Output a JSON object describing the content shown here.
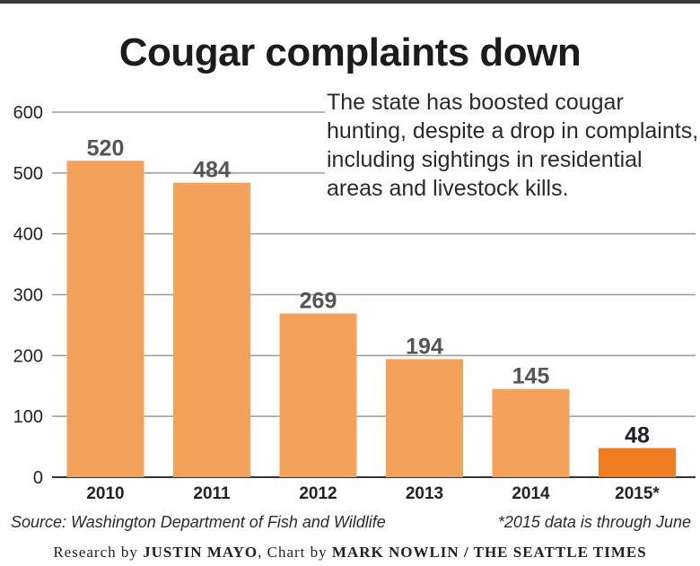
{
  "chart_data": {
    "type": "bar",
    "title": "Cougar complaints down",
    "subtitle": "The state has boosted cougar hunting, despite a drop in complaints, including sightings in residential areas and livestock kills.",
    "categories": [
      "2010",
      "2011",
      "2012",
      "2013",
      "2014",
      "2015*"
    ],
    "values": [
      520,
      484,
      269,
      194,
      145,
      48
    ],
    "yticks": [
      0,
      100,
      200,
      300,
      400,
      500,
      600
    ],
    "ylim": [
      0,
      600
    ],
    "xlabel": "",
    "ylabel": "",
    "grid": true,
    "colors": {
      "bar": "#f4a259",
      "highlight_bar": "#f07d22",
      "grid": "#9a9a9a",
      "label": "#555555"
    },
    "highlight_index": 5
  },
  "source": "Source: Washington Department of Fish and Wildlife",
  "footnote": "*2015 data is through June",
  "credits": {
    "prefix": "Research by ",
    "researcher": "JUSTIN MAYO",
    "middle": ", Chart by ",
    "artist": "MARK NOWLIN / THE SEATTLE TIMES"
  }
}
